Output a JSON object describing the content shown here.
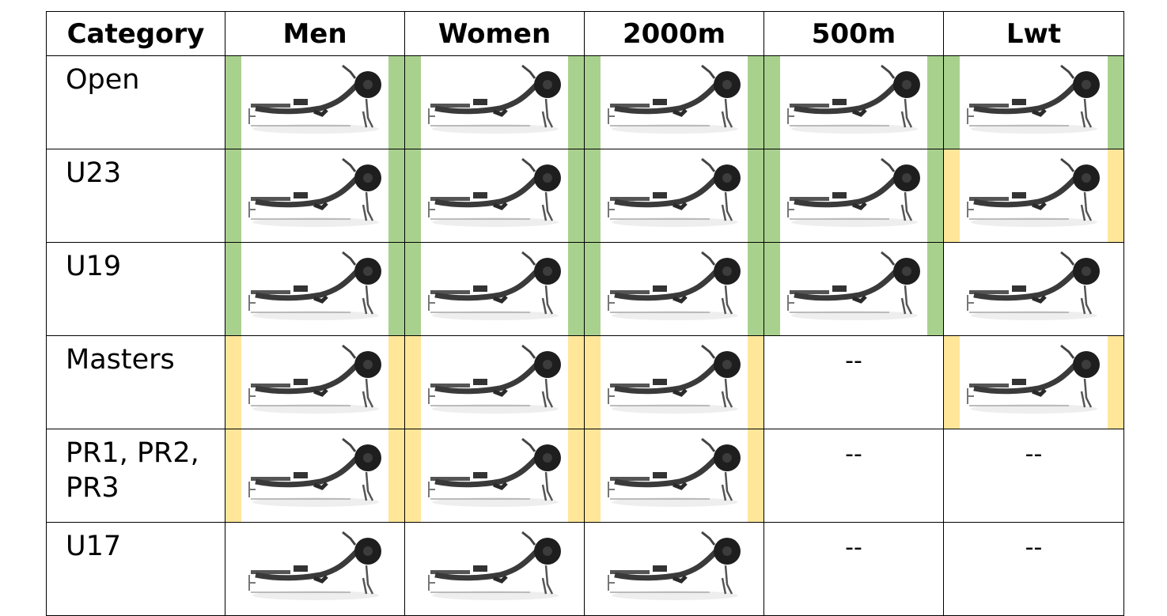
{
  "colors": {
    "green": "#a9d18e",
    "yellow": "#ffe699"
  },
  "headers": [
    "Category",
    "Men",
    "Women",
    "2000m",
    "500m",
    "Lwt"
  ],
  "rows": [
    {
      "category": "Open",
      "cells": [
        {
          "type": "image",
          "icon": "rowing-machine-icon",
          "highlight": "green"
        },
        {
          "type": "image",
          "icon": "rowing-machine-icon",
          "highlight": "green"
        },
        {
          "type": "image",
          "icon": "rowing-machine-icon",
          "highlight": "green"
        },
        {
          "type": "image",
          "icon": "rowing-machine-icon",
          "highlight": "green"
        },
        {
          "type": "image",
          "icon": "rowing-machine-icon",
          "highlight": "green"
        }
      ]
    },
    {
      "category": "U23",
      "cells": [
        {
          "type": "image",
          "icon": "rowing-machine-icon",
          "highlight": "green"
        },
        {
          "type": "image",
          "icon": "rowing-machine-icon",
          "highlight": "green"
        },
        {
          "type": "image",
          "icon": "rowing-machine-icon",
          "highlight": "green"
        },
        {
          "type": "image",
          "icon": "rowing-machine-icon",
          "highlight": "green"
        },
        {
          "type": "image",
          "icon": "rowing-machine-icon",
          "highlight": "yellow"
        }
      ]
    },
    {
      "category": "U19",
      "cells": [
        {
          "type": "image",
          "icon": "rowing-machine-icon",
          "highlight": "green"
        },
        {
          "type": "image",
          "icon": "rowing-machine-icon",
          "highlight": "green"
        },
        {
          "type": "image",
          "icon": "rowing-machine-icon",
          "highlight": "green"
        },
        {
          "type": "image",
          "icon": "rowing-machine-icon",
          "highlight": "green"
        },
        {
          "type": "image",
          "icon": "rowing-machine-icon",
          "highlight": "none"
        }
      ]
    },
    {
      "category": "Masters",
      "cells": [
        {
          "type": "image",
          "icon": "rowing-machine-icon",
          "highlight": "yellow"
        },
        {
          "type": "image",
          "icon": "rowing-machine-icon",
          "highlight": "yellow"
        },
        {
          "type": "image",
          "icon": "rowing-machine-icon",
          "highlight": "yellow"
        },
        {
          "type": "text",
          "text": "--"
        },
        {
          "type": "image",
          "icon": "rowing-machine-icon",
          "highlight": "yellow"
        }
      ]
    },
    {
      "category": "PR1, PR2, PR3",
      "cells": [
        {
          "type": "image",
          "icon": "rowing-machine-icon",
          "highlight": "yellow"
        },
        {
          "type": "image",
          "icon": "rowing-machine-icon",
          "highlight": "yellow"
        },
        {
          "type": "image",
          "icon": "rowing-machine-icon",
          "highlight": "yellow"
        },
        {
          "type": "text",
          "text": "--"
        },
        {
          "type": "text",
          "text": "--"
        }
      ]
    },
    {
      "category": "U17",
      "cells": [
        {
          "type": "image",
          "icon": "rowing-machine-icon",
          "highlight": "none"
        },
        {
          "type": "image",
          "icon": "rowing-machine-icon",
          "highlight": "none"
        },
        {
          "type": "image",
          "icon": "rowing-machine-icon",
          "highlight": "none"
        },
        {
          "type": "text",
          "text": "--"
        },
        {
          "type": "text",
          "text": "--"
        }
      ]
    }
  ]
}
